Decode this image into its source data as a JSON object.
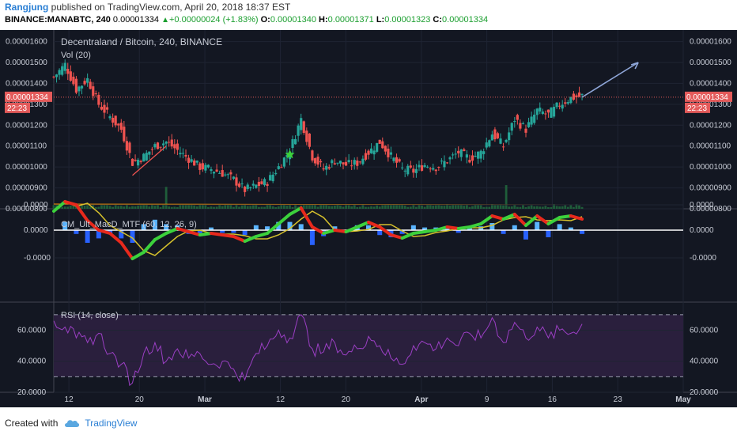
{
  "header": {
    "author": "Rangjung",
    "published_text": "published on TradingView.com, April 20, 2018 18:37 EST",
    "symbol": "BINANCE:MANABTC, 240",
    "last": "0.00001334",
    "up_arrow": "▲",
    "change": "+0.00000024 (+1.83%)",
    "o_label": "O:",
    "o_value": "0.00001340",
    "h_label": "H:",
    "h_value": "0.00001371",
    "l_label": "L:",
    "l_value": "0.00001323",
    "c_label": "C:",
    "c_value": "0.00001334"
  },
  "footer": {
    "created_with": "Created with",
    "brand": "TradingView",
    "logo_icon": "tradingview-cloud-icon"
  },
  "colors": {
    "background": "#131722",
    "grid": "#1f2433",
    "text": "#c8ccd6",
    "up": "#26a69a",
    "down": "#ef5350",
    "price_line": "#e35a5a",
    "macd_green": "#3cd13c",
    "macd_red": "#e8291c",
    "macd_signal": "#d6c12c",
    "hist_blue": "#2962ff",
    "hist_cyan": "#5ab4ff",
    "rsi": "#9b3fc4",
    "rsi_band": "#2a1f3d",
    "volume_ma": "#ff9800",
    "projection": "#8fa6d8"
  },
  "chart_data": [
    {
      "type": "candlestick",
      "title": "Decentraland / Bitcoin, 240, BINANCE",
      "volume_label": "Vol (20)",
      "ylim": [
        8e-06,
        1.64e-05
      ],
      "y_ticks": [
        "0.00001600",
        "0.00001500",
        "0.00001400",
        "0.00001300",
        "0.00001200",
        "0.00001100",
        "0.00001000",
        "0.00000900",
        "0.00000800"
      ],
      "x_ticks": [
        "12",
        "20",
        "Mar",
        "12",
        "20",
        "Apr",
        "9",
        "16",
        "23",
        "May"
      ],
      "last_price": {
        "value": "0.00001334",
        "countdown": "22:23"
      },
      "close_path": [
        {
          "x": 0,
          "y": 1.43e-05
        },
        {
          "x": 2,
          "y": 1.49e-05
        },
        {
          "x": 4,
          "y": 1.37e-05
        },
        {
          "x": 6,
          "y": 1.42e-05
        },
        {
          "x": 8,
          "y": 1.3e-05
        },
        {
          "x": 10,
          "y": 1.24e-05
        },
        {
          "x": 12,
          "y": 1.18e-05
        },
        {
          "x": 14,
          "y": 1.02e-05
        },
        {
          "x": 16,
          "y": 1.05e-05
        },
        {
          "x": 18,
          "y": 1.1e-05
        },
        {
          "x": 20,
          "y": 1.12e-05
        },
        {
          "x": 22,
          "y": 1.08e-05
        },
        {
          "x": 24,
          "y": 1.04e-05
        },
        {
          "x": 26,
          "y": 1e-05
        },
        {
          "x": 28,
          "y": 9.9e-06
        },
        {
          "x": 30,
          "y": 9.7e-06
        },
        {
          "x": 32,
          "y": 9.4e-06
        },
        {
          "x": 34,
          "y": 8.9e-06
        },
        {
          "x": 36,
          "y": 9.1e-06
        },
        {
          "x": 38,
          "y": 9.3e-06
        },
        {
          "x": 40,
          "y": 1e-05
        },
        {
          "x": 42,
          "y": 1.08e-05
        },
        {
          "x": 44,
          "y": 1.23e-05
        },
        {
          "x": 46,
          "y": 1.05e-05
        },
        {
          "x": 48,
          "y": 9.9e-06
        },
        {
          "x": 50,
          "y": 1.03e-05
        },
        {
          "x": 52,
          "y": 1.01e-05
        },
        {
          "x": 54,
          "y": 1.02e-05
        },
        {
          "x": 56,
          "y": 1.07e-05
        },
        {
          "x": 58,
          "y": 1.12e-05
        },
        {
          "x": 60,
          "y": 1.05e-05
        },
        {
          "x": 62,
          "y": 9.9e-06
        },
        {
          "x": 64,
          "y": 9.8e-06
        },
        {
          "x": 66,
          "y": 1.01e-05
        },
        {
          "x": 68,
          "y": 1e-05
        },
        {
          "x": 70,
          "y": 1.03e-05
        },
        {
          "x": 72,
          "y": 1.07e-05
        },
        {
          "x": 74,
          "y": 1.04e-05
        },
        {
          "x": 76,
          "y": 1.07e-05
        },
        {
          "x": 78,
          "y": 1.16e-05
        },
        {
          "x": 80,
          "y": 1.1e-05
        },
        {
          "x": 82,
          "y": 1.23e-05
        },
        {
          "x": 84,
          "y": 1.18e-05
        },
        {
          "x": 86,
          "y": 1.27e-05
        },
        {
          "x": 88,
          "y": 1.25e-05
        },
        {
          "x": 90,
          "y": 1.3e-05
        },
        {
          "x": 92,
          "y": 1.33e-05
        },
        {
          "x": 94,
          "y": 1.34e-05
        }
      ],
      "x_max": 95,
      "projection": {
        "from": {
          "x": 94,
          "y": 1.334e-05
        },
        "to": {
          "x": 104,
          "y": 1.5e-05
        }
      },
      "trend_line": {
        "from": {
          "x": 14,
          "y": 9.6e-06
        },
        "to": {
          "x": 20,
          "y": 1.1e-05
        }
      },
      "star_marker": {
        "x": 42,
        "y": 1.06e-05
      }
    },
    {
      "type": "line",
      "title": "CM_Ult_MacD_MTF (60, 12, 26, 9)",
      "y_ticks": [
        "0.0000",
        "0.0000",
        "-0.0000"
      ],
      "ylim": [
        -1,
        1
      ],
      "macd_path": [
        {
          "x": 0,
          "y": 0.6
        },
        {
          "x": 2,
          "y": 0.9
        },
        {
          "x": 4,
          "y": 0.8
        },
        {
          "x": 6,
          "y": 0.3
        },
        {
          "x": 8,
          "y": 0.0
        },
        {
          "x": 10,
          "y": -0.1
        },
        {
          "x": 12,
          "y": -0.4
        },
        {
          "x": 14,
          "y": -0.9
        },
        {
          "x": 16,
          "y": -0.7
        },
        {
          "x": 18,
          "y": -0.3
        },
        {
          "x": 20,
          "y": -0.1
        },
        {
          "x": 22,
          "y": 0.05
        },
        {
          "x": 24,
          "y": -0.05
        },
        {
          "x": 26,
          "y": -0.15
        },
        {
          "x": 28,
          "y": -0.1
        },
        {
          "x": 30,
          "y": -0.15
        },
        {
          "x": 32,
          "y": -0.2
        },
        {
          "x": 34,
          "y": -0.35
        },
        {
          "x": 36,
          "y": -0.2
        },
        {
          "x": 38,
          "y": -0.1
        },
        {
          "x": 40,
          "y": 0.2
        },
        {
          "x": 42,
          "y": 0.5
        },
        {
          "x": 44,
          "y": 0.7
        },
        {
          "x": 46,
          "y": 0.1
        },
        {
          "x": 48,
          "y": -0.1
        },
        {
          "x": 50,
          "y": 0.0
        },
        {
          "x": 52,
          "y": -0.05
        },
        {
          "x": 54,
          "y": 0.1
        },
        {
          "x": 56,
          "y": 0.25
        },
        {
          "x": 58,
          "y": 0.1
        },
        {
          "x": 60,
          "y": -0.15
        },
        {
          "x": 62,
          "y": -0.25
        },
        {
          "x": 64,
          "y": -0.1
        },
        {
          "x": 66,
          "y": -0.05
        },
        {
          "x": 68,
          "y": 0.0
        },
        {
          "x": 70,
          "y": 0.1
        },
        {
          "x": 72,
          "y": 0.05
        },
        {
          "x": 74,
          "y": 0.1
        },
        {
          "x": 76,
          "y": 0.2
        },
        {
          "x": 78,
          "y": 0.45
        },
        {
          "x": 80,
          "y": 0.35
        },
        {
          "x": 82,
          "y": 0.5
        },
        {
          "x": 84,
          "y": 0.15
        },
        {
          "x": 86,
          "y": 0.45
        },
        {
          "x": 88,
          "y": 0.2
        },
        {
          "x": 90,
          "y": 0.4
        },
        {
          "x": 92,
          "y": 0.45
        },
        {
          "x": 94,
          "y": 0.35
        }
      ]
    },
    {
      "type": "line",
      "title": "RSI (14, close)",
      "y_ticks": [
        "60.0000",
        "40.0000",
        "20.0000"
      ],
      "ylim": [
        20,
        75
      ],
      "bands": [
        70,
        30
      ],
      "rsi_path": [
        {
          "x": 0,
          "y": 66
        },
        {
          "x": 2,
          "y": 62
        },
        {
          "x": 4,
          "y": 55
        },
        {
          "x": 6,
          "y": 52
        },
        {
          "x": 8,
          "y": 58
        },
        {
          "x": 10,
          "y": 45
        },
        {
          "x": 12,
          "y": 38
        },
        {
          "x": 14,
          "y": 26
        },
        {
          "x": 16,
          "y": 45
        },
        {
          "x": 18,
          "y": 52
        },
        {
          "x": 20,
          "y": 40
        },
        {
          "x": 22,
          "y": 48
        },
        {
          "x": 24,
          "y": 42
        },
        {
          "x": 26,
          "y": 45
        },
        {
          "x": 28,
          "y": 38
        },
        {
          "x": 30,
          "y": 40
        },
        {
          "x": 32,
          "y": 35
        },
        {
          "x": 34,
          "y": 28
        },
        {
          "x": 36,
          "y": 45
        },
        {
          "x": 38,
          "y": 50
        },
        {
          "x": 40,
          "y": 60
        },
        {
          "x": 42,
          "y": 55
        },
        {
          "x": 44,
          "y": 70
        },
        {
          "x": 46,
          "y": 48
        },
        {
          "x": 48,
          "y": 46
        },
        {
          "x": 50,
          "y": 52
        },
        {
          "x": 52,
          "y": 44
        },
        {
          "x": 54,
          "y": 48
        },
        {
          "x": 56,
          "y": 56
        },
        {
          "x": 58,
          "y": 50
        },
        {
          "x": 60,
          "y": 42
        },
        {
          "x": 62,
          "y": 38
        },
        {
          "x": 64,
          "y": 50
        },
        {
          "x": 66,
          "y": 52
        },
        {
          "x": 68,
          "y": 48
        },
        {
          "x": 70,
          "y": 55
        },
        {
          "x": 72,
          "y": 50
        },
        {
          "x": 74,
          "y": 58
        },
        {
          "x": 76,
          "y": 55
        },
        {
          "x": 78,
          "y": 68
        },
        {
          "x": 80,
          "y": 52
        },
        {
          "x": 82,
          "y": 65
        },
        {
          "x": 84,
          "y": 55
        },
        {
          "x": 86,
          "y": 62
        },
        {
          "x": 88,
          "y": 55
        },
        {
          "x": 90,
          "y": 60
        },
        {
          "x": 92,
          "y": 58
        },
        {
          "x": 94,
          "y": 64
        }
      ]
    }
  ]
}
